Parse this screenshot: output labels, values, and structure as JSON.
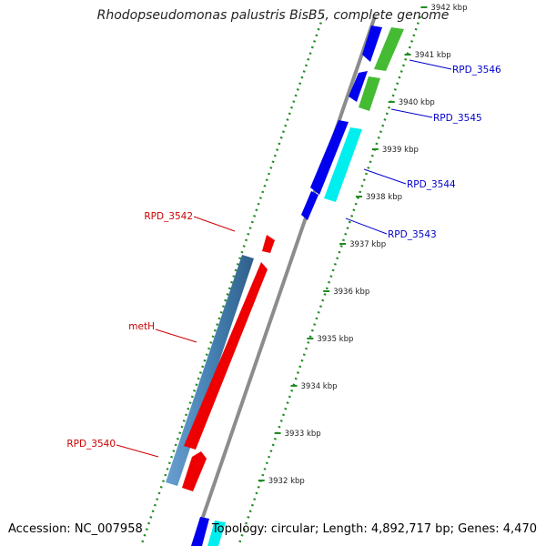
{
  "title": "Rhodopseudomonas palustris BisB5, complete genome",
  "footer": {
    "accession": "Accession: NC_007958",
    "summary": "Topology: circular; Length: 4,892,717 bp; Genes: 4,470"
  },
  "colors": {
    "backbone": "#8c8c8c",
    "forward_cds": "#0000ee",
    "reverse_cds": "#ee0000",
    "rrna_green": "#44bb33",
    "cyan": "#00eeee",
    "steelblue": "#4682b4",
    "ticks": "#228b22",
    "label_blue": "#0000cc",
    "label_red": "#cc0000"
  },
  "kbp_ticks": [
    "3932 kbp",
    "3933 kbp",
    "3934 kbp",
    "3935 kbp",
    "3936 kbp",
    "3937 kbp",
    "3938 kbp",
    "3939 kbp",
    "3940 kbp",
    "3941 kbp",
    "3942 kbp"
  ],
  "gene_labels": [
    {
      "text": "RPD_3546",
      "color": "blue"
    },
    {
      "text": "RPD_3545",
      "color": "blue"
    },
    {
      "text": "RPD_3544",
      "color": "blue"
    },
    {
      "text": "RPD_3543",
      "color": "blue"
    },
    {
      "text": "RPD_3542",
      "color": "red"
    },
    {
      "text": "metH",
      "color": "red"
    },
    {
      "text": "RPD_3540",
      "color": "red"
    }
  ]
}
